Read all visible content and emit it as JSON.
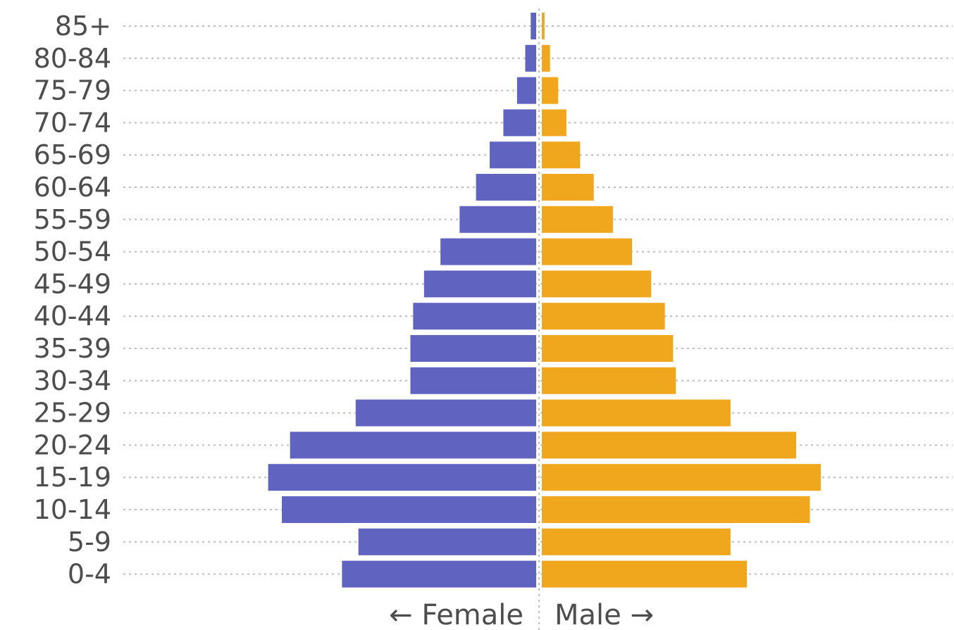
{
  "chart_data": {
    "type": "bar",
    "orientation": "horizontal-population-pyramid",
    "categories": [
      "85+",
      "80-84",
      "75-79",
      "70-74",
      "65-69",
      "60-64",
      "55-59",
      "50-54",
      "45-49",
      "40-44",
      "35-39",
      "30-34",
      "25-29",
      "20-24",
      "15-19",
      "10-14",
      "5-9",
      "0-4"
    ],
    "series": [
      {
        "name": "Female",
        "color": "#6163c0",
        "values": [
          0.2,
          0.4,
          0.7,
          1.2,
          1.7,
          2.2,
          2.8,
          3.5,
          4.1,
          4.5,
          4.6,
          4.6,
          6.6,
          9.0,
          9.8,
          9.3,
          6.5,
          7.1
        ]
      },
      {
        "name": "Male",
        "color": "#f0a61d",
        "values": [
          0.1,
          0.3,
          0.6,
          0.9,
          1.4,
          1.9,
          2.6,
          3.3,
          4.0,
          4.5,
          4.8,
          4.9,
          6.9,
          9.3,
          10.2,
          9.8,
          6.9,
          7.5
        ]
      }
    ],
    "side_labels": {
      "left": "← Female",
      "right": "Male →"
    },
    "grid": true,
    "legend": "none",
    "xlim": [
      -11,
      11
    ]
  }
}
